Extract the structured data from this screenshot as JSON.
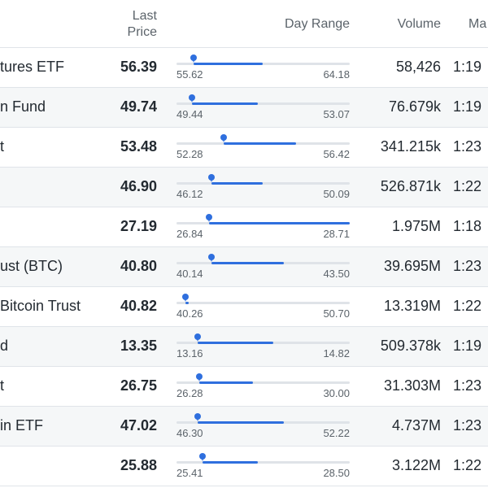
{
  "columns": {
    "name": "",
    "last_price_line1": "Last",
    "last_price_line2": "Price",
    "day_range": "Day Range",
    "volume": "Volume",
    "market_time": "Ma"
  },
  "rows": [
    {
      "name": "tures ETF",
      "price": "56.39",
      "low": "55.62",
      "high": "64.18",
      "current_fraction": 0.1,
      "fill_start": 0.1,
      "fill_end": 0.5,
      "volume": "58,426",
      "time": "1:19"
    },
    {
      "name": "n Fund",
      "price": "49.74",
      "low": "49.44",
      "high": "53.07",
      "current_fraction": 0.09,
      "fill_start": 0.09,
      "fill_end": 0.47,
      "volume": "76.679k",
      "time": "1:19"
    },
    {
      "name": "t",
      "price": "53.48",
      "low": "52.28",
      "high": "56.42",
      "current_fraction": 0.27,
      "fill_start": 0.27,
      "fill_end": 0.69,
      "volume": "341.215k",
      "time": "1:23"
    },
    {
      "name": "",
      "price": "46.90",
      "low": "46.12",
      "high": "50.09",
      "current_fraction": 0.2,
      "fill_start": 0.2,
      "fill_end": 0.5,
      "volume": "526.871k",
      "time": "1:22"
    },
    {
      "name": "",
      "price": "27.19",
      "low": "26.84",
      "high": "28.71",
      "current_fraction": 0.19,
      "fill_start": 0.19,
      "fill_end": 1.0,
      "volume": "1.975M",
      "time": "1:18"
    },
    {
      "name": "ust (BTC)",
      "price": "40.80",
      "low": "40.14",
      "high": "43.50",
      "current_fraction": 0.2,
      "fill_start": 0.2,
      "fill_end": 0.62,
      "volume": "39.695M",
      "time": "1:23"
    },
    {
      "name": "Bitcoin Trust",
      "price": "40.82",
      "low": "40.26",
      "high": "50.70",
      "current_fraction": 0.05,
      "fill_start": 0.05,
      "fill_end": 0.07,
      "volume": "13.319M",
      "time": "1:22"
    },
    {
      "name": "d",
      "price": "13.35",
      "low": "13.16",
      "high": "14.82",
      "current_fraction": 0.12,
      "fill_start": 0.12,
      "fill_end": 0.56,
      "volume": "509.378k",
      "time": "1:19"
    },
    {
      "name": "t",
      "price": "26.75",
      "low": "26.28",
      "high": "30.00",
      "current_fraction": 0.13,
      "fill_start": 0.13,
      "fill_end": 0.44,
      "volume": "31.303M",
      "time": "1:23"
    },
    {
      "name": "in ETF",
      "price": "47.02",
      "low": "46.30",
      "high": "52.22",
      "current_fraction": 0.12,
      "fill_start": 0.12,
      "fill_end": 0.62,
      "volume": "4.737M",
      "time": "1:23"
    },
    {
      "name": "",
      "price": "25.88",
      "low": "25.41",
      "high": "28.50",
      "current_fraction": 0.15,
      "fill_start": 0.15,
      "fill_end": 0.47,
      "volume": "3.122M",
      "time": "1:22"
    }
  ],
  "colors": {
    "accent": "#2f6fde",
    "track": "#dfe3e8",
    "row_alt": "#f5f7f8",
    "text": "#232a31",
    "muted": "#5b636a"
  }
}
